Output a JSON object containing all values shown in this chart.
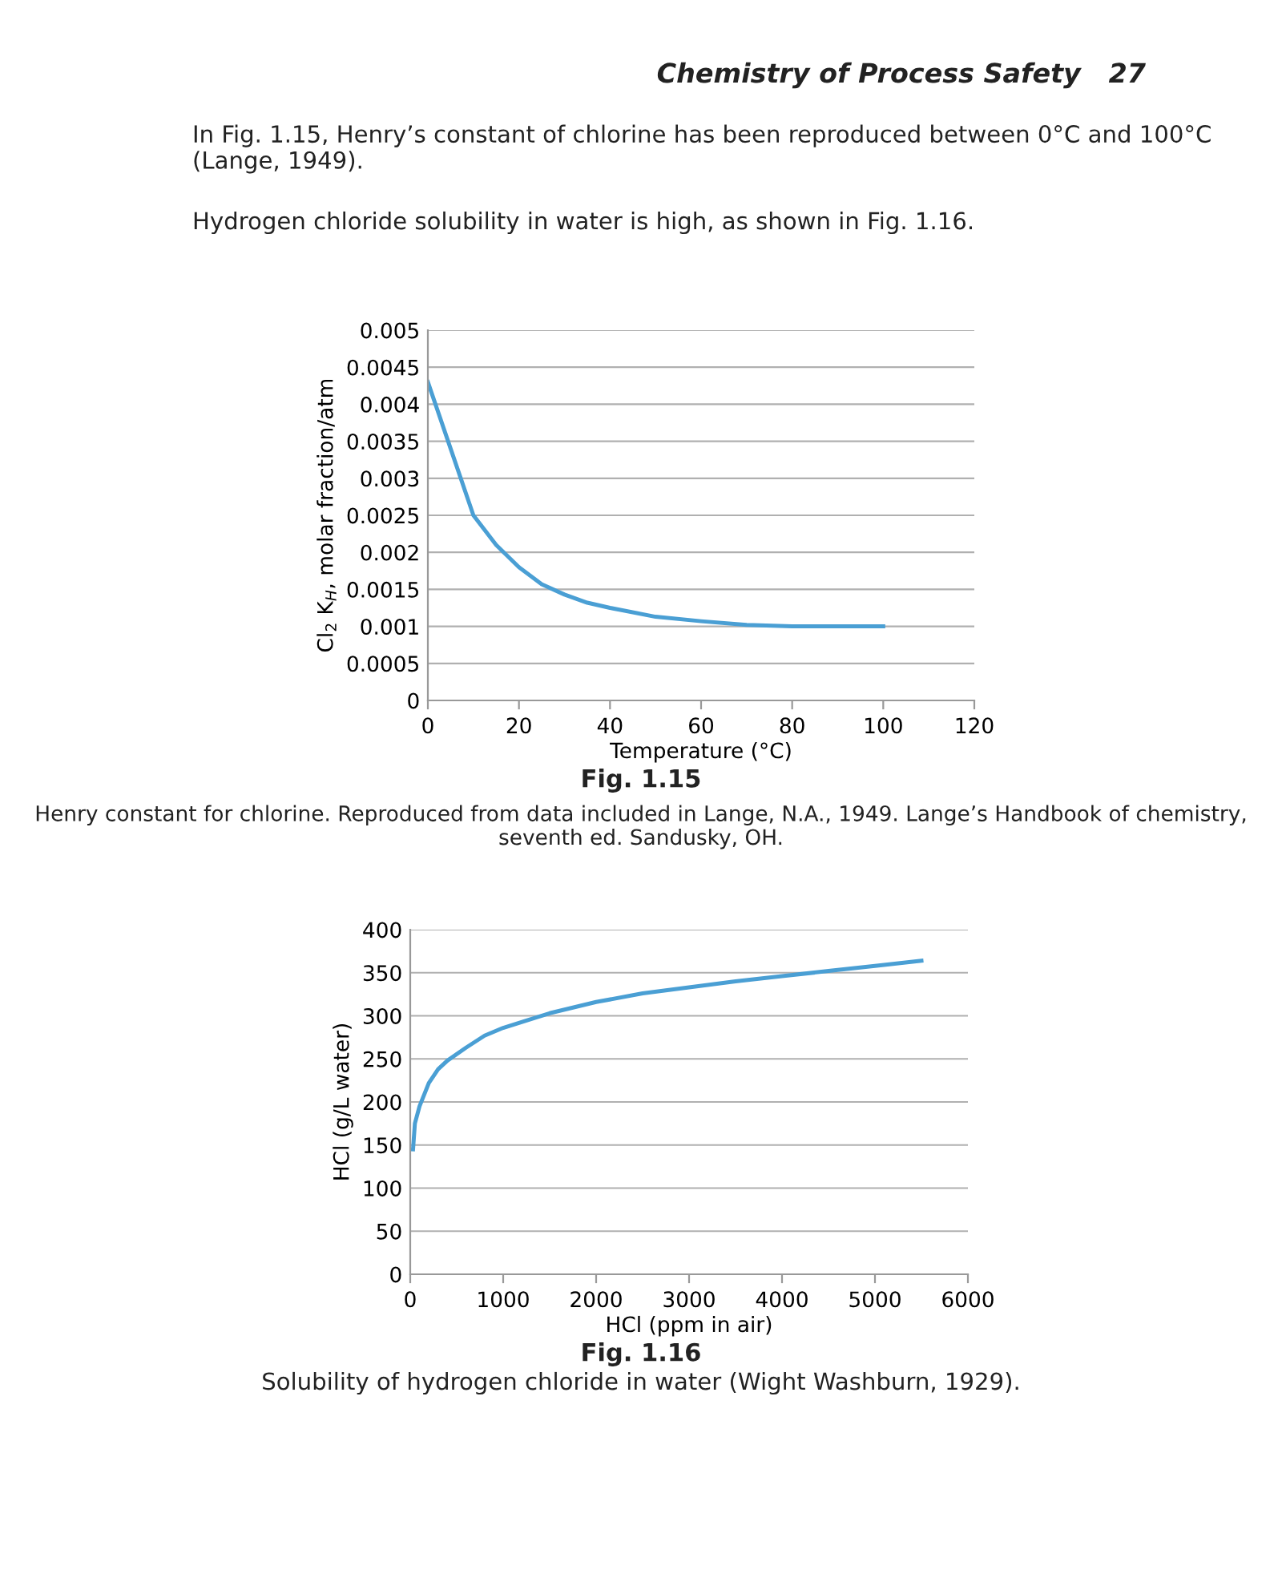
{
  "chart_data": [
    {
      "type": "line",
      "xlabel": "Temperature (°C)",
      "ylabel": "Cl$_{2}$ K$_{H}$, molar fraction/atm",
      "color": "#4a9fd4",
      "grid": "y",
      "line_style": "solid",
      "marker": "none",
      "x": [
        0,
        5,
        10,
        15,
        20,
        25,
        30,
        35,
        40,
        50,
        60,
        70,
        80,
        90,
        100
      ],
      "values": [
        0.0043,
        0.0034,
        0.0025,
        0.0021,
        0.0018,
        0.00157,
        0.00143,
        0.00132,
        0.00125,
        0.00113,
        0.00107,
        0.00102,
        0.001,
        0.001,
        0.001
      ],
      "xlim": [
        0,
        120
      ],
      "xticks": [
        0,
        20,
        40,
        60,
        80,
        100,
        120
      ],
      "ylim": [
        0,
        0.005
      ],
      "yticks": [
        0,
        0.0005,
        0.001,
        0.0015,
        0.002,
        0.0025,
        0.003,
        0.0035,
        0.004,
        0.0045,
        0.005
      ],
      "annotations": [
        "Chemistry of Process Safety   27",
        "In Fig. 1.15, Henry’s constant of chlorine has been reproduced between 0°C and 100°C (Lange, 1949).",
        "Hydrogen chloride solubility in water is high, as shown in Fig. 1.16.",
        "Fig. 1.15",
        "Henry constant for chlorine. Reproduced from data included in Lange, N.A., 1949. Lange’s Handbook of chemistry, seventh ed. Sandusky, OH."
      ]
    },
    {
      "type": "line",
      "xlabel": "HCl (ppm in air)",
      "ylabel": "HCl (g/L water)",
      "color": "#4a9fd4",
      "grid": "y",
      "line_style": "solid",
      "marker": "none",
      "x": [
        30,
        50,
        100,
        200,
        300,
        400,
        600,
        800,
        1000,
        1500,
        2000,
        2500,
        3000,
        3500,
        4000,
        4500,
        5000,
        5500
      ],
      "values": [
        145,
        175,
        195,
        222,
        238,
        248,
        263,
        277,
        286,
        303,
        316,
        326,
        333,
        340,
        346,
        352,
        358,
        364
      ],
      "xlim": [
        0,
        6000
      ],
      "xticks": [
        0,
        1000,
        2000,
        3000,
        4000,
        5000,
        6000
      ],
      "ylim": [
        0,
        400
      ],
      "yticks": [
        0,
        50,
        100,
        150,
        200,
        250,
        300,
        350,
        400
      ],
      "annotations": [
        "Fig. 1.16",
        "Solubility of hydrogen chloride in water (Wight Washburn, 1929)."
      ]
    }
  ]
}
